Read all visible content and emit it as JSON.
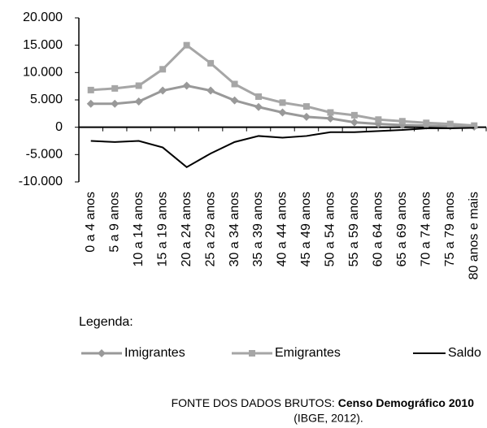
{
  "chart_data": {
    "type": "line",
    "categories": [
      "0 a 4 anos",
      "5 a 9 anos",
      "10 a 14 anos",
      "15 a 19 anos",
      "20 a 24 anos",
      "25 a 29 anos",
      "30 a 34 anos",
      "35 a 39 anos",
      "40 a 44 anos",
      "45 a 49 anos",
      "50 a 54 anos",
      "55 a 59 anos",
      "60 a 64 anos",
      "65 a 69 anos",
      "70 a 74 anos",
      "75 a 79 anos",
      "80 anos e mais"
    ],
    "series": [
      {
        "name": "Imigrantes",
        "color": "#999999",
        "marker": "diamond",
        "values": [
          4300,
          4300,
          4700,
          6700,
          7600,
          6700,
          4900,
          3700,
          2700,
          1900,
          1600,
          900,
          600,
          400,
          300,
          200,
          100
        ]
      },
      {
        "name": "Emigrantes",
        "color": "#a6a6a6",
        "marker": "square",
        "values": [
          6800,
          7100,
          7600,
          10600,
          15000,
          11700,
          7900,
          5600,
          4500,
          3800,
          2700,
          2200,
          1400,
          1100,
          800,
          600,
          300
        ]
      },
      {
        "name": "Saldo",
        "color": "#000000",
        "values": [
          -2500,
          -2700,
          -2500,
          -3700,
          -7300,
          -4800,
          -2700,
          -1600,
          -1900,
          -1600,
          -900,
          -900,
          -700,
          -500,
          -200,
          -200,
          -100
        ]
      }
    ],
    "ylim": [
      -10000,
      20000
    ],
    "yticks": [
      {
        "value": -10000,
        "label": "-10.000"
      },
      {
        "value": -5000,
        "label": "-5.000"
      },
      0,
      {
        "value": 5000,
        "label": "5.000"
      },
      {
        "value": 10000,
        "label": "10.000"
      },
      {
        "value": 15000,
        "label": "15.000"
      },
      {
        "value": 20000,
        "label": "20.000"
      }
    ],
    "legend_title": "Legenda:",
    "source": {
      "prefix": "FONTE DOS DADOS BRUTOS:",
      "bold": "Censo Demográfico 2010",
      "note": "(IBGE, 2012)."
    }
  }
}
